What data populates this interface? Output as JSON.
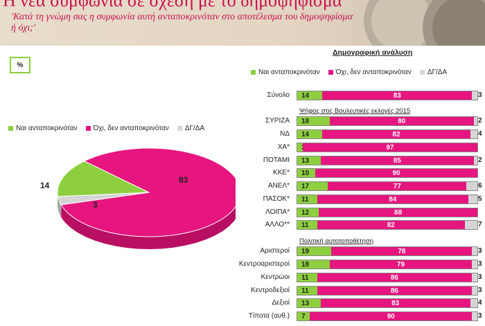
{
  "header": {
    "title": "Η νέα συμφωνία σε σχέση με το δημοψήφισμα",
    "question": "'Κατά τη γνώμη σας η συμφωνία αυτή ανταποκρινόταν στο αποτέλεσμα του δημοψηφίσματος ή όχι;'"
  },
  "pct_label": "%",
  "demo_title": "Δημογραφική ανάλυση",
  "legend": {
    "yes": "Ναι ανταποκρινόταν",
    "no": "Όχι, δεν ανταποκρινόταν",
    "dk": "ΔΓ/ΔΑ"
  },
  "colors": {
    "yes": "#8dcf3f",
    "no": "#e6157f",
    "dk": "#d5d5d5"
  },
  "sections": {
    "vote": "Ψήφος στις Βουλευτικές εκλογές 2015",
    "ideology": "Πολιτική αυτοτοποθέτηση"
  },
  "chart_data": [
    {
      "type": "pie",
      "categories": [
        "Ναι ανταποκρινόταν",
        "Όχι, δεν ανταποκρινόταν",
        "ΔΓ/ΔΑ"
      ],
      "values": [
        14,
        83,
        3
      ],
      "legend_position": "top"
    },
    {
      "type": "bar",
      "orientation": "horizontal",
      "stacked": true,
      "categories": [
        "Σύνολο",
        "ΣΥΡΙΖΑ",
        "ΝΔ",
        "ΧΑ*",
        "ΠΟΤΑΜΙ",
        "ΚΚΕ*",
        "ΑΝΕΛ*",
        "ΠΑΣΟΚ*",
        "ΛΟΙΠΑ*",
        "ΑΛΛΟ**",
        "Αριστεροί",
        "Κεντροαριστεροί",
        "Κεντρώοι",
        "Κεντροδεξιοί",
        "Δεξιοί",
        "Τίποτα (αυθ.)"
      ],
      "series": [
        {
          "name": "Ναι ανταποκρινόταν",
          "values": [
            14,
            18,
            14,
            3,
            13,
            10,
            17,
            11,
            12,
            11,
            19,
            18,
            11,
            11,
            13,
            7
          ]
        },
        {
          "name": "Όχι, δεν ανταποκρινόταν",
          "values": [
            83,
            80,
            82,
            97,
            85,
            90,
            77,
            84,
            88,
            82,
            78,
            79,
            86,
            86,
            83,
            90
          ]
        },
        {
          "name": "ΔΓ/ΔΑ",
          "values": [
            3,
            2,
            4,
            null,
            2,
            null,
            6,
            5,
            null,
            7,
            3,
            3,
            3,
            3,
            4,
            3
          ]
        }
      ],
      "xlim": [
        0,
        100
      ],
      "legend_position": "top"
    }
  ]
}
